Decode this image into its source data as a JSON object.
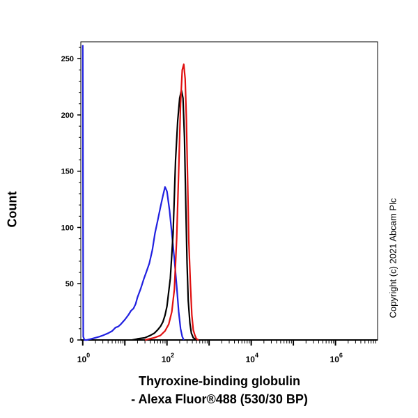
{
  "chart_data": {
    "type": "line",
    "title": "",
    "xlabel_line1": "Thyroxine-binding globulin",
    "xlabel_line2": "- Alexa Fluor®488 (530/30 BP)",
    "ylabel": "Count",
    "x_scale": "log",
    "xlim": [
      0.9,
      10000000
    ],
    "ylim": [
      0,
      265
    ],
    "y_ticks": [
      0,
      50,
      100,
      150,
      200,
      250
    ],
    "x_ticks": [
      {
        "value": 1,
        "base": "10",
        "exp": "0"
      },
      {
        "value": 100,
        "base": "10",
        "exp": "2"
      },
      {
        "value": 10000,
        "base": "10",
        "exp": "4"
      },
      {
        "value": 1000000,
        "base": "10",
        "exp": "6"
      }
    ],
    "grid": false,
    "series": [
      {
        "color": "#2020e0",
        "x": [
          1,
          1.03,
          1.1,
          1.25,
          1.6,
          2,
          2.5,
          3,
          4,
          5,
          6,
          7,
          8,
          10,
          12,
          14,
          16,
          18,
          20,
          24,
          28,
          32,
          38,
          45,
          52,
          60,
          70,
          80,
          90,
          100,
          115,
          130,
          150,
          170,
          190,
          210,
          230,
          250
        ],
        "y": [
          262,
          3,
          0,
          0,
          1,
          2,
          3,
          4,
          6,
          8,
          11,
          12,
          14,
          18,
          22,
          26,
          28,
          32,
          38,
          46,
          54,
          60,
          68,
          80,
          95,
          106,
          118,
          128,
          136,
          132,
          115,
          95,
          72,
          48,
          25,
          10,
          3,
          0
        ]
      },
      {
        "color": "#000000",
        "x": [
          15,
          20,
          30,
          40,
          50,
          60,
          70,
          80,
          90,
          100,
          120,
          140,
          160,
          180,
          200,
          220,
          240,
          260,
          280,
          300,
          320,
          350,
          380,
          420,
          460,
          520
        ],
        "y": [
          0,
          1,
          2,
          4,
          6,
          9,
          12,
          16,
          22,
          30,
          55,
          95,
          160,
          195,
          215,
          222,
          215,
          180,
          120,
          68,
          35,
          15,
          6,
          2,
          1,
          0
        ]
      },
      {
        "color": "#e01010",
        "x": [
          30,
          50,
          70,
          90,
          110,
          130,
          150,
          170,
          190,
          210,
          230,
          250,
          270,
          290,
          310,
          330,
          360,
          390,
          420,
          460,
          500,
          560
        ],
        "y": [
          0,
          2,
          4,
          8,
          14,
          25,
          45,
          90,
          150,
          210,
          240,
          245,
          232,
          195,
          140,
          88,
          50,
          22,
          9,
          4,
          1,
          0
        ]
      }
    ]
  },
  "copyright": "Copyright (c) 2021 Abcam Plc"
}
